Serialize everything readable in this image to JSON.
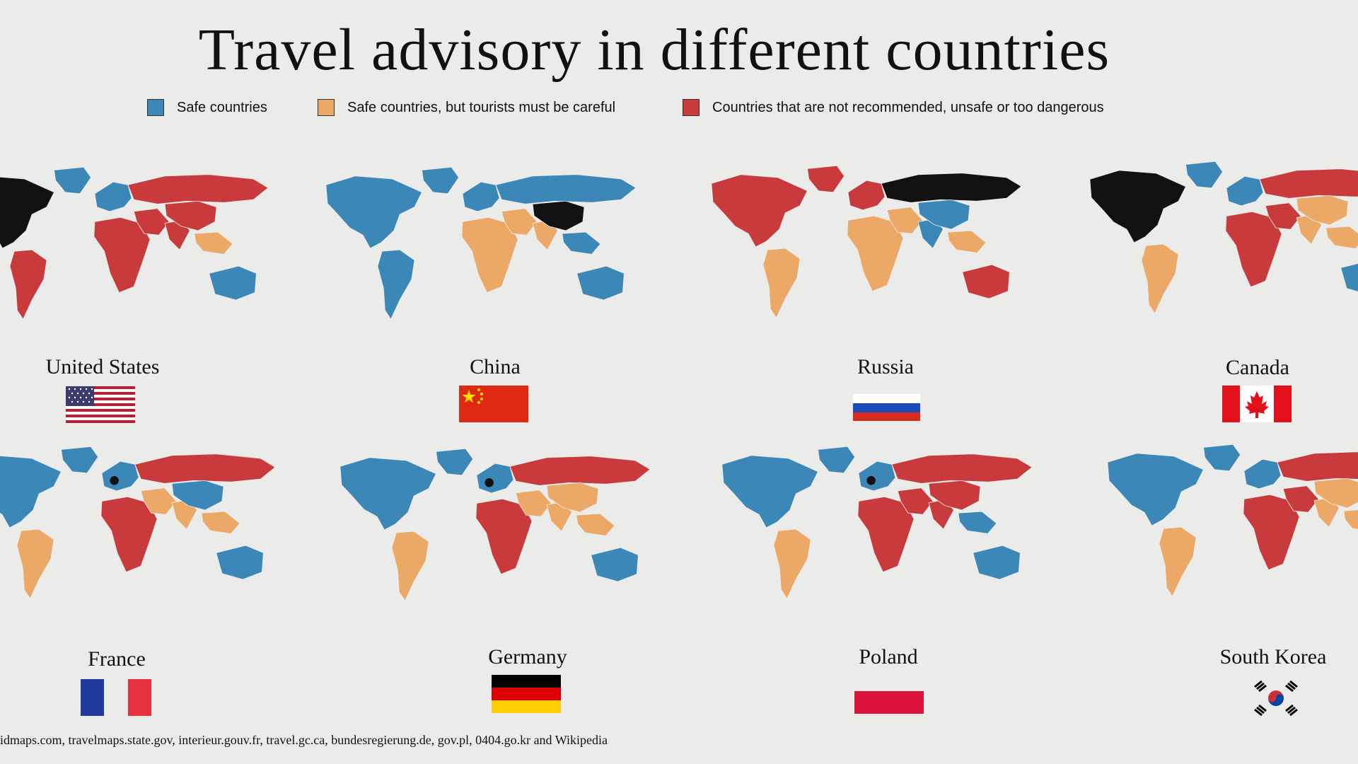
{
  "title": "Travel advisory in different countries",
  "legend": [
    {
      "label": "Safe countries",
      "color": "#3b87b8"
    },
    {
      "label": "Safe countries, but tourists must be careful",
      "color": "#eba866"
    },
    {
      "label": "Countries that are not recommended, unsafe or too dangerous",
      "color": "#c93a3d"
    }
  ],
  "colors": {
    "safe": "#3b87b8",
    "careful": "#eba866",
    "danger": "#c93a3d",
    "home": "#111111"
  },
  "panels": [
    {
      "name": "United States",
      "flag": "us-flag",
      "home": "north-america",
      "scheme": {
        "north-america": "home",
        "greenland": "safe",
        "south-america": "danger",
        "europe": "safe",
        "russia": "danger",
        "africa": "danger",
        "middle-east": "danger",
        "india": "danger",
        "china": "danger",
        "se-asia": "careful",
        "australia": "safe"
      }
    },
    {
      "name": "China",
      "flag": "cn-flag",
      "home": "china",
      "scheme": {
        "north-america": "safe",
        "greenland": "safe",
        "south-america": "safe",
        "europe": "safe",
        "russia": "safe",
        "africa": "careful",
        "middle-east": "careful",
        "india": "careful",
        "china": "home",
        "se-asia": "safe",
        "australia": "safe"
      }
    },
    {
      "name": "Russia",
      "flag": "ru-flag",
      "home": "russia",
      "scheme": {
        "north-america": "danger",
        "greenland": "danger",
        "south-america": "careful",
        "europe": "danger",
        "russia": "home",
        "africa": "careful",
        "middle-east": "careful",
        "india": "safe",
        "china": "safe",
        "se-asia": "careful",
        "australia": "danger"
      }
    },
    {
      "name": "Canada",
      "flag": "ca-flag",
      "home": "north-america",
      "scheme": {
        "north-america": "home",
        "greenland": "safe",
        "south-america": "careful",
        "europe": "safe",
        "russia": "danger",
        "africa": "danger",
        "middle-east": "danger",
        "india": "careful",
        "china": "careful",
        "se-asia": "careful",
        "australia": "safe"
      }
    },
    {
      "name": "France",
      "flag": "fr-flag",
      "home": "europe-dot",
      "scheme": {
        "north-america": "safe",
        "greenland": "safe",
        "south-america": "careful",
        "europe": "safe",
        "russia": "danger",
        "africa": "danger",
        "middle-east": "careful",
        "india": "careful",
        "china": "safe",
        "se-asia": "careful",
        "australia": "safe"
      }
    },
    {
      "name": "Germany",
      "flag": "de-flag",
      "home": "europe-dot",
      "scheme": {
        "north-america": "safe",
        "greenland": "safe",
        "south-america": "careful",
        "europe": "safe",
        "russia": "danger",
        "africa": "danger",
        "middle-east": "careful",
        "india": "careful",
        "china": "careful",
        "se-asia": "careful",
        "australia": "safe"
      }
    },
    {
      "name": "Poland",
      "flag": "pl-flag",
      "home": "europe-dot",
      "scheme": {
        "north-america": "safe",
        "greenland": "safe",
        "south-america": "careful",
        "europe": "safe",
        "russia": "danger",
        "africa": "danger",
        "middle-east": "danger",
        "india": "danger",
        "china": "danger",
        "se-asia": "safe",
        "australia": "safe"
      }
    },
    {
      "name": "South Korea",
      "flag": "kr-flag",
      "home": "korea-dot",
      "scheme": {
        "north-america": "safe",
        "greenland": "safe",
        "south-america": "careful",
        "europe": "safe",
        "russia": "danger",
        "africa": "danger",
        "middle-east": "danger",
        "india": "careful",
        "china": "careful",
        "se-asia": "careful",
        "australia": "safe"
      }
    }
  ],
  "footer": "idmaps.com, travelmaps.state.gov, interieur.gouv.fr, travel.gc.ca, bundesregierung.de, gov.pl, 0404.go.kr and Wikipedia"
}
